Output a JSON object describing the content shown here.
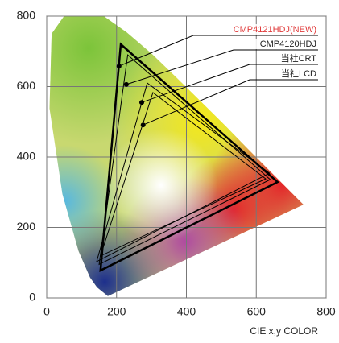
{
  "chart_data": {
    "type": "gamut",
    "xlabel": "CIE x,y COLOR",
    "xlim": [
      0,
      800
    ],
    "ylim": [
      0,
      800
    ],
    "xticks": [
      0,
      200,
      400,
      600,
      800
    ],
    "yticks": [
      0,
      200,
      400,
      600,
      800
    ],
    "grid": true,
    "series": [
      {
        "name": "CMP4121HDJ(NEW)",
        "label_color": "#e03a3a",
        "color": "#000000",
        "line_width": 2.5,
        "x": [
          212,
          661,
          154
        ],
        "y": [
          720,
          329,
          78
        ],
        "point": [
          207,
          658
        ]
      },
      {
        "name": "CMP4120HDJ",
        "label_color": "#222222",
        "color": "#000000",
        "line_width": 1,
        "x": [
          232,
          640,
          150
        ],
        "y": [
          690,
          336,
          95
        ],
        "point": [
          228,
          606
        ]
      },
      {
        "name": "当社CRT",
        "label_color": "#222222",
        "color": "#000000",
        "line_width": 1,
        "x": [
          288,
          638,
          143
        ],
        "y": [
          610,
          354,
          103
        ],
        "point": [
          272,
          555
        ]
      },
      {
        "name": "当社LCD",
        "label_color": "#222222",
        "color": "#000000",
        "line_width": 1,
        "x": [
          304,
          627,
          154
        ],
        "y": [
          583,
          338,
          119
        ],
        "point": [
          276,
          491
        ]
      }
    ]
  }
}
